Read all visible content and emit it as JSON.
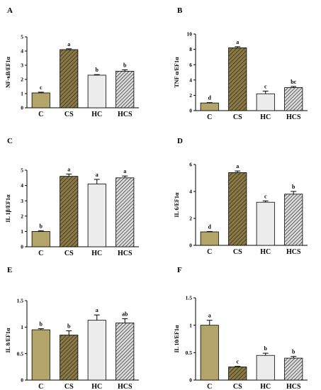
{
  "colors": {
    "C": "#b3a46a",
    "CS": "#7a6a3a",
    "HC": "#ececec",
    "HCS": "#6e6e6e"
  },
  "chart_data": [
    {
      "type": "bar",
      "panel": "A",
      "ylabel": "NF-κB/EF1α",
      "categories": [
        "C",
        "CS",
        "HC",
        "HCS"
      ],
      "values": [
        1.05,
        4.1,
        2.3,
        2.58
      ],
      "errors": [
        0.05,
        0.06,
        0.04,
        0.1
      ],
      "letters": [
        "c",
        "a",
        "b",
        "b"
      ],
      "ylim": [
        0,
        5
      ],
      "yticks": [
        0,
        1,
        2,
        3,
        4,
        5
      ]
    },
    {
      "type": "bar",
      "panel": "B",
      "ylabel": "TNF α/EF1α",
      "categories": [
        "C",
        "CS",
        "HC",
        "HCS"
      ],
      "values": [
        1.0,
        8.2,
        2.2,
        3.0
      ],
      "errors": [
        0.05,
        0.15,
        0.35,
        0.15
      ],
      "letters": [
        "d",
        "a",
        "c",
        "bc"
      ],
      "ylim": [
        0,
        10
      ],
      "yticks": [
        0,
        2,
        4,
        6,
        8,
        10
      ]
    },
    {
      "type": "bar",
      "panel": "C",
      "ylabel": "IL 1β/EF1α",
      "categories": [
        "C",
        "CS",
        "HC",
        "HCS"
      ],
      "values": [
        1.0,
        4.6,
        4.1,
        4.5
      ],
      "errors": [
        0.05,
        0.15,
        0.3,
        0.12
      ],
      "letters": [
        "b",
        "a",
        "a",
        "a"
      ],
      "ylim": [
        0,
        5
      ],
      "yticks": [
        0,
        1,
        2,
        3,
        4,
        5
      ]
    },
    {
      "type": "bar",
      "panel": "D",
      "ylabel": "IL 6/EF1α",
      "categories": [
        "C",
        "CS",
        "HC",
        "HCS"
      ],
      "values": [
        1.0,
        5.4,
        3.2,
        3.8
      ],
      "errors": [
        0.03,
        0.12,
        0.1,
        0.2
      ],
      "letters": [
        "d",
        "a",
        "c",
        "b"
      ],
      "ylim": [
        0,
        6
      ],
      "yticks": [
        0,
        2,
        4,
        6
      ]
    },
    {
      "type": "bar",
      "panel": "E",
      "ylabel": "IL 8/EF1α",
      "categories": [
        "C",
        "CS",
        "HC",
        "HCS"
      ],
      "values": [
        0.95,
        0.85,
        1.13,
        1.08
      ],
      "errors": [
        0.02,
        0.08,
        0.1,
        0.08
      ],
      "letters": [
        "b",
        "b",
        "a",
        "ab"
      ],
      "ylim": [
        0,
        1.5
      ],
      "yticks": [
        0.0,
        0.5,
        1.0,
        1.5
      ]
    },
    {
      "type": "bar",
      "panel": "F",
      "ylabel": "IL 10/EF1α",
      "categories": [
        "C",
        "CS",
        "HC",
        "HCS"
      ],
      "values": [
        1.0,
        0.24,
        0.45,
        0.4
      ],
      "errors": [
        0.09,
        0.01,
        0.04,
        0.03
      ],
      "letters": [
        "a",
        "c",
        "b",
        "b"
      ],
      "ylim": [
        0,
        1.5
      ],
      "yticks": [
        0.0,
        0.5,
        1.0,
        1.5
      ]
    }
  ]
}
